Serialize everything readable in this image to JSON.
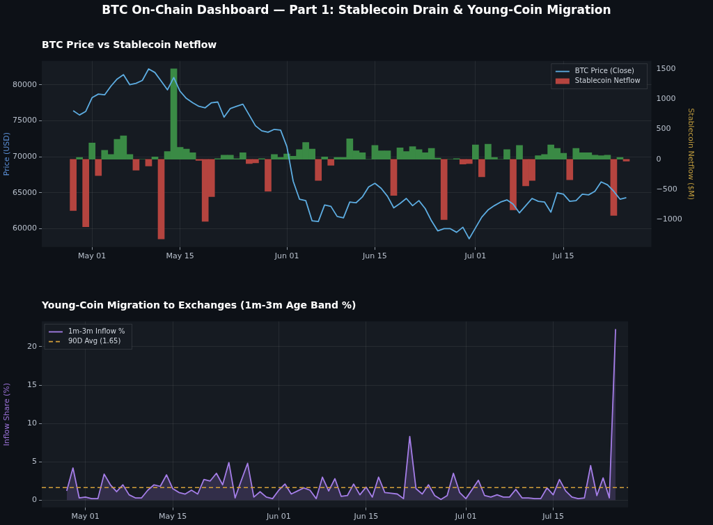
{
  "chart_data": [
    {
      "type": "bar",
      "title": "BTC On-Chain Dashboard — Part 1: Stablecoin Drain & Young-Coin Migration",
      "subtitle": "BTC Price vs Stablecoin Netflow",
      "ylabel": "Price (USD)",
      "y2label": "Stablecoin Netflow ($M)",
      "x": [
        "--04-28",
        "--04-29",
        "--04-30",
        "--05-01",
        "--05-02",
        "--05-03",
        "--05-04",
        "--05-05",
        "--05-06",
        "--05-07",
        "--05-08",
        "--05-09",
        "--05-10",
        "--05-11",
        "--05-12",
        "--05-13",
        "--05-14",
        "--05-15",
        "--05-16",
        "--05-17",
        "--05-18",
        "--05-19",
        "--05-20",
        "--05-21",
        "--05-22",
        "--05-23",
        "--05-24",
        "--05-25",
        "--05-26",
        "--05-27",
        "--05-28",
        "--05-29",
        "--05-30",
        "--05-31",
        "--06-01",
        "--06-02",
        "--06-03",
        "--06-04",
        "--06-05",
        "--06-06",
        "--06-07",
        "--06-08",
        "--06-09",
        "--06-10",
        "--06-11",
        "--06-12",
        "--06-13",
        "--06-14",
        "--06-15",
        "--06-16",
        "--06-17",
        "--06-18",
        "--06-19",
        "--06-20",
        "--06-21",
        "--06-22",
        "--06-23",
        "--06-24",
        "--06-25",
        "--06-26",
        "--06-27",
        "--06-28",
        "--06-29",
        "--06-30",
        "--07-01",
        "--07-02",
        "--07-03",
        "--07-04",
        "--07-05",
        "--07-06",
        "--07-07",
        "--07-08",
        "--07-09",
        "--07-10",
        "--07-11",
        "--07-12",
        "--07-13",
        "--07-14",
        "--07-15",
        "--07-16",
        "--07-17",
        "--07-18",
        "--07-19",
        "--07-20",
        "--07-21",
        "--07-22",
        "--07-23",
        "--07-24",
        "--07-25"
      ],
      "xlim": [
        "--04-23",
        "--07-29"
      ],
      "xticks": [
        {
          "value": "--05-01",
          "label": "May 01"
        },
        {
          "value": "--05-15",
          "label": "May 15"
        },
        {
          "value": "--06-01",
          "label": "Jun 01"
        },
        {
          "value": "--06-15",
          "label": "Jun 15"
        },
        {
          "value": "--07-01",
          "label": "Jul 01"
        },
        {
          "value": "--07-15",
          "label": "Jul 15"
        }
      ],
      "ylim": [
        57450,
        83300
      ],
      "yticks": [
        60000,
        65000,
        70000,
        75000,
        80000
      ],
      "y2lim": [
        -1455,
        1630
      ],
      "y2ticks": [
        {
          "value": -1000,
          "label": "−1000"
        },
        {
          "value": -500,
          "label": "−500"
        },
        0,
        500,
        1000,
        1500
      ],
      "grid": true,
      "legend": "top right",
      "marker": "none",
      "series": [
        {
          "name": "BTC Price (Close)",
          "type": "line",
          "color": "#5dade2",
          "values": [
            76400,
            75800,
            76300,
            78200,
            78700,
            78600,
            79800,
            80800,
            81400,
            80000,
            80200,
            80600,
            82200,
            81700,
            80500,
            79300,
            81000,
            79100,
            78100,
            77500,
            77000,
            76800,
            77500,
            77600,
            75500,
            76700,
            77000,
            77300,
            75800,
            74300,
            73600,
            73400,
            73800,
            73700,
            71400,
            66600,
            64100,
            63900,
            61100,
            61000,
            63300,
            63100,
            61700,
            61500,
            63700,
            63600,
            64400,
            65800,
            66300,
            65600,
            64500,
            62900,
            63500,
            64200,
            63200,
            63900,
            62800,
            61100,
            59700,
            60000,
            60000,
            59500,
            60200,
            58600,
            60100,
            61600,
            62600,
            63200,
            63700,
            64000,
            63400,
            62200,
            63200,
            64200,
            63800,
            63700,
            62300,
            65000,
            64800,
            63800,
            63900,
            64800,
            64700,
            65200,
            66500,
            66100,
            65200,
            64100,
            64300
          ]
        },
        {
          "name": "Stablecoin Netflow",
          "type": "bar",
          "axis": "y2",
          "color": "#b5443f",
          "colors": [
            "#b5443f",
            "#3a8a45",
            "#b5443f",
            "#3a8a45",
            "#b5443f",
            "#3a8a45",
            "#3a8a45",
            "#3a8a45",
            "#3a8a45",
            "#3a8a45",
            "#b5443f",
            "#3a8a45",
            "#b5443f",
            "#3a8a45",
            "#b5443f",
            "#3a8a45",
            "#3a8a45",
            "#3a8a45",
            "#3a8a45",
            "#3a8a45",
            "#b5443f",
            "#b5443f",
            "#b5443f",
            "#3a8a45",
            "#3a8a45",
            "#3a8a45",
            "#3a8a45",
            "#3a8a45",
            "#b5443f",
            "#b5443f",
            "#3a8a45",
            "#b5443f",
            "#3a8a45",
            "#3a8a45",
            "#3a8a45",
            "#3a8a45",
            "#3a8a45",
            "#3a8a45",
            "#3a8a45",
            "#b5443f",
            "#3a8a45",
            "#b5443f",
            "#3a8a45",
            "#3a8a45",
            "#3a8a45",
            "#3a8a45",
            "#3a8a45",
            "#3a8a45",
            "#3a8a45",
            "#3a8a45",
            "#3a8a45",
            "#b5443f",
            "#3a8a45",
            "#3a8a45",
            "#3a8a45",
            "#3a8a45",
            "#3a8a45",
            "#3a8a45",
            "#3a8a45",
            "#b5443f",
            "#3a8a45",
            "#3a8a45",
            "#b5443f",
            "#b5443f",
            "#3a8a45",
            "#b5443f",
            "#3a8a45",
            "#3a8a45",
            "#3a8a45",
            "#3a8a45",
            "#b5443f",
            "#3a8a45",
            "#b5443f",
            "#b5443f",
            "#3a8a45",
            "#3a8a45",
            "#3a8a45",
            "#3a8a45",
            "#3a8a45",
            "#b5443f",
            "#3a8a45",
            "#3a8a45",
            "#3a8a45",
            "#3a8a45",
            "#3a8a45",
            "#3a8a45",
            "#b5443f",
            "#3a8a45",
            "#b5443f"
          ],
          "values": [
            -850,
            30,
            -1120,
            270,
            -270,
            150,
            80,
            330,
            390,
            80,
            -180,
            0,
            -110,
            40,
            -1320,
            130,
            1500,
            200,
            170,
            110,
            -20,
            -1030,
            -620,
            10,
            70,
            70,
            10,
            110,
            -70,
            -60,
            10,
            -530,
            80,
            30,
            90,
            50,
            160,
            280,
            170,
            -350,
            40,
            -100,
            30,
            30,
            340,
            140,
            110,
            0,
            230,
            140,
            140,
            -600,
            190,
            130,
            210,
            160,
            110,
            180,
            20,
            -1000,
            0,
            10,
            -80,
            -70,
            240,
            -290,
            250,
            30,
            0,
            160,
            -840,
            230,
            -440,
            -350,
            60,
            80,
            240,
            180,
            100,
            -340,
            180,
            110,
            110,
            70,
            60,
            70,
            -930,
            30,
            -30
          ]
        }
      ]
    },
    {
      "type": "area",
      "title": "Young-Coin Migration to Exchanges (1m-3m Age Band %)",
      "ylabel": "Inflow Share (%)",
      "x": [
        "--04-28",
        "--04-29",
        "--04-30",
        "--05-01",
        "--05-02",
        "--05-03",
        "--05-04",
        "--05-05",
        "--05-06",
        "--05-07",
        "--05-08",
        "--05-09",
        "--05-10",
        "--05-11",
        "--05-12",
        "--05-13",
        "--05-14",
        "--05-15",
        "--05-16",
        "--05-17",
        "--05-18",
        "--05-19",
        "--05-20",
        "--05-21",
        "--05-22",
        "--05-23",
        "--05-24",
        "--05-25",
        "--05-26",
        "--05-27",
        "--05-28",
        "--05-29",
        "--05-30",
        "--05-31",
        "--06-01",
        "--06-02",
        "--06-03",
        "--06-04",
        "--06-05",
        "--06-06",
        "--06-07",
        "--06-08",
        "--06-09",
        "--06-10",
        "--06-11",
        "--06-12",
        "--06-13",
        "--06-14",
        "--06-15",
        "--06-16",
        "--06-17",
        "--06-18",
        "--06-19",
        "--06-20",
        "--06-21",
        "--06-22",
        "--06-23",
        "--06-24",
        "--06-25",
        "--06-26",
        "--06-27",
        "--06-28",
        "--06-29",
        "--06-30",
        "--07-01",
        "--07-02",
        "--07-03",
        "--07-04",
        "--07-05",
        "--07-06",
        "--07-07",
        "--07-08",
        "--07-09",
        "--07-10",
        "--07-11",
        "--07-12",
        "--07-13",
        "--07-14",
        "--07-15",
        "--07-16",
        "--07-17",
        "--07-18",
        "--07-19",
        "--07-20",
        "--07-21",
        "--07-22",
        "--07-23",
        "--07-24",
        "--07-25"
      ],
      "xlim": [
        "--04-24",
        "--07-27"
      ],
      "xticks": [
        {
          "value": "--05-01",
          "label": "May 01"
        },
        {
          "value": "--05-15",
          "label": "May 15"
        },
        {
          "value": "--06-01",
          "label": "Jun 01"
        },
        {
          "value": "--06-15",
          "label": "Jun 15"
        },
        {
          "value": "--07-01",
          "label": "Jul 01"
        },
        {
          "value": "--07-15",
          "label": "Jul 15"
        }
      ],
      "ylim": [
        -0.95,
        23.3
      ],
      "yticks": [
        0,
        5,
        10,
        15,
        20
      ],
      "grid": true,
      "legend": "top left",
      "marker": "none",
      "ref_lines": [
        {
          "axis": "y",
          "value": 1.65,
          "label": "90D Avg (1.65)",
          "color": "#d4a03a",
          "line_style": "dashed"
        }
      ],
      "series": [
        {
          "name": "1m-3m Inflow %",
          "color": "#a57ee8",
          "values": [
            1.2,
            4.2,
            0.3,
            0.4,
            0.2,
            0.2,
            3.4,
            2.0,
            1.1,
            2.0,
            0.7,
            0.3,
            0.3,
            1.3,
            2.0,
            1.8,
            3.3,
            1.5,
            1.0,
            0.8,
            1.3,
            0.8,
            2.7,
            2.5,
            3.5,
            2.0,
            4.9,
            0.3,
            2.6,
            4.8,
            0.4,
            1.1,
            0.4,
            0.2,
            1.3,
            2.1,
            0.8,
            1.2,
            1.6,
            1.3,
            0.2,
            3.0,
            1.2,
            2.8,
            0.5,
            0.6,
            2.1,
            0.7,
            1.7,
            0.4,
            3.0,
            1.0,
            0.9,
            0.8,
            0.2,
            8.3,
            1.5,
            0.8,
            2.0,
            0.6,
            0.1,
            0.6,
            3.5,
            1.0,
            0.2,
            1.4,
            2.6,
            0.6,
            0.4,
            0.7,
            0.4,
            0.4,
            1.4,
            0.3,
            0.3,
            0.2,
            0.2,
            1.6,
            0.7,
            2.7,
            1.2,
            0.4,
            0.2,
            0.3,
            4.5,
            0.6,
            2.9,
            0.3,
            22.3
          ]
        }
      ]
    }
  ]
}
